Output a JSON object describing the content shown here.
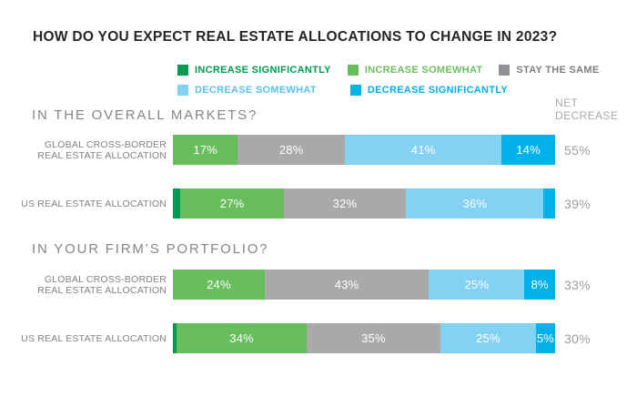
{
  "chart_data": {
    "type": "bar",
    "variant": "horizontal-stacked",
    "title": "HOW DO YOU EXPECT REAL ESTATE ALLOCATIONS TO CHANGE IN 2023?",
    "net_column_header": "NET DECREASE",
    "xlim": [
      0,
      100
    ],
    "grid": false,
    "legend_position": "top",
    "categories": [
      {
        "label": "INCREASE SIGNIFICANTLY",
        "bar_color": "#009a50",
        "swatch_color": "#009a50",
        "text_color": "#009a50"
      },
      {
        "label": "INCREASE SOMEWHAT",
        "bar_color": "#68bd5c",
        "swatch_color": "#68bd5c",
        "text_color": "#6cbf62"
      },
      {
        "label": "STAY THE SAME",
        "bar_color": "#a9a9a9",
        "swatch_color": "#8f9194",
        "text_color": "#7d7f82"
      },
      {
        "label": "DECREASE SOMEWHAT",
        "bar_color": "#83d2f4",
        "swatch_color": "#83d2f4",
        "text_color": "#54c5f0"
      },
      {
        "label": "DECREASE SIGNIFICANTLY",
        "bar_color": "#00b2e9",
        "swatch_color": "#00b2e9",
        "text_color": "#00aeef"
      }
    ],
    "legend_rows": [
      [
        0,
        1,
        2
      ],
      [
        3,
        4
      ]
    ],
    "sections": [
      {
        "header": "IN THE OVERALL MARKETS?",
        "rows": [
          {
            "label_lines": [
              "GLOBAL CROSS-BORDER",
              "REAL ESTATE ALLOCATION"
            ],
            "values": [
              0,
              17,
              28,
              41,
              14
            ],
            "segment_labels": [
              "",
              "17%",
              "28%",
              "41%",
              "14%"
            ],
            "net_decrease": "55%"
          },
          {
            "label_lines": [
              "US REAL ESTATE ALLOCATION"
            ],
            "values": [
              2,
              27,
              32,
              36,
              3
            ],
            "segment_labels": [
              "",
              "27%",
              "32%",
              "36%",
              ""
            ],
            "net_decrease": "39%"
          }
        ]
      },
      {
        "header": "IN YOUR FIRM’S PORTFOLIO?",
        "rows": [
          {
            "label_lines": [
              "GLOBAL CROSS-BORDER",
              "REAL ESTATE ALLOCATION"
            ],
            "values": [
              0,
              24,
              43,
              25,
              8
            ],
            "segment_labels": [
              "",
              "24%",
              "43%",
              "25%",
              "8%"
            ],
            "net_decrease": "33%"
          },
          {
            "label_lines": [
              "US REAL ESTATE ALLOCATION"
            ],
            "values": [
              1,
              34,
              35,
              25,
              5
            ],
            "segment_labels": [
              "",
              "34%",
              "35%",
              "25%",
              "5%"
            ],
            "net_decrease": "30%"
          }
        ]
      }
    ]
  }
}
